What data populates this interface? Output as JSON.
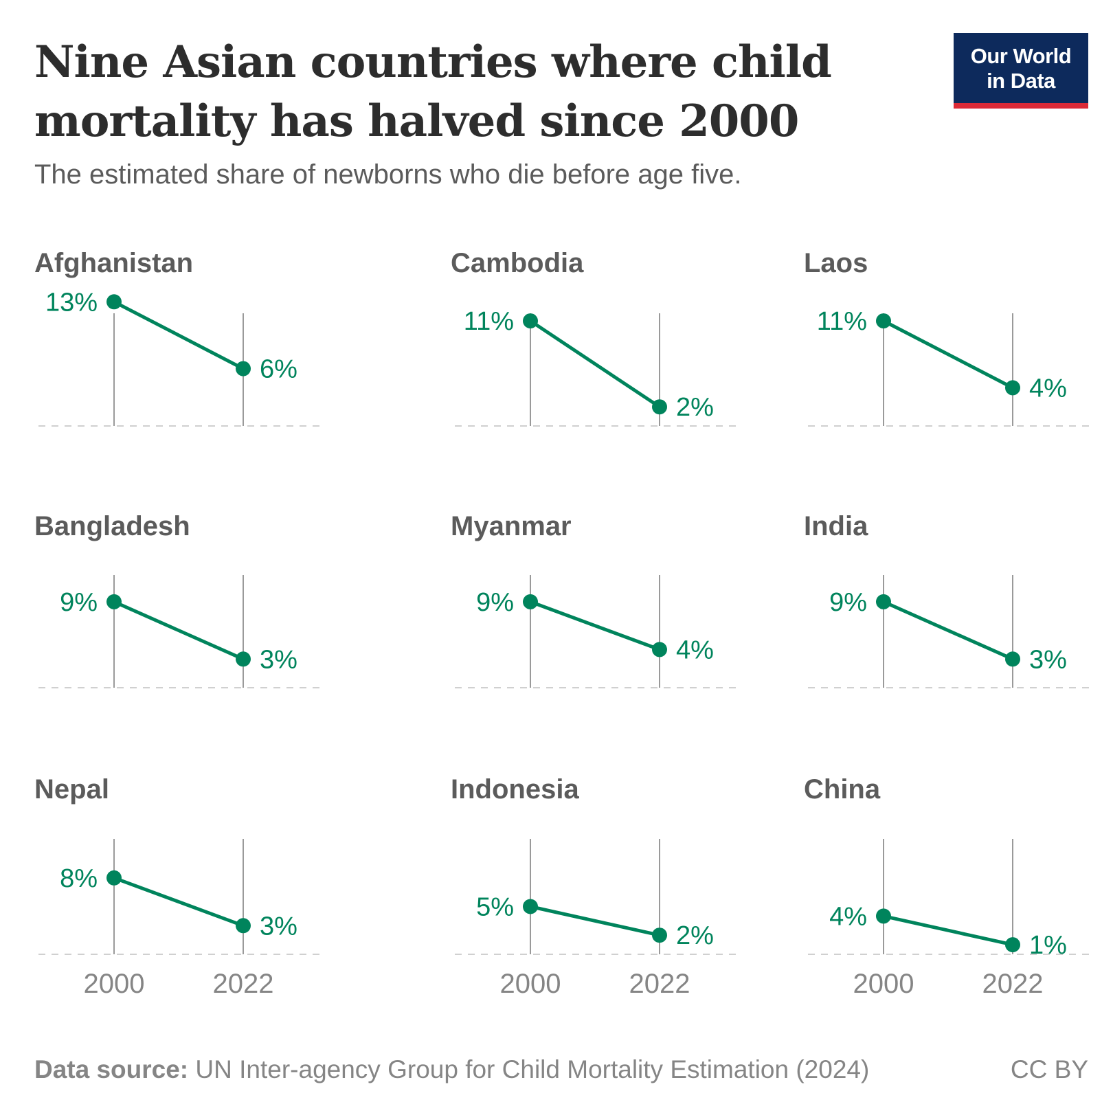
{
  "header": {
    "title_line1": "Nine Asian countries where child",
    "title_line2": "mortality has halved since 2000",
    "subtitle": "The estimated share of newborns who die before age five."
  },
  "logo": {
    "line1": "Our World",
    "line2": "in Data"
  },
  "footer": {
    "source_label": "Data source:",
    "source_text": " UN Inter-agency Group for Child Mortality Estimation (2024)",
    "license": "CC BY"
  },
  "colors": {
    "series": "#00845c",
    "axis_line": "#9a9a9a",
    "baseline": "#d0d0d0",
    "label": "#5b5b5b",
    "tick": "#858585"
  },
  "chart_data": [
    {
      "type": "line",
      "title": "Afghanistan",
      "x": [
        "2000",
        "2022"
      ],
      "values": [
        13,
        6
      ],
      "labels": [
        "13%",
        "6%"
      ],
      "ylim": [
        0,
        14.5
      ]
    },
    {
      "type": "line",
      "title": "Cambodia",
      "x": [
        "2000",
        "2022"
      ],
      "values": [
        11,
        2
      ],
      "labels": [
        "11%",
        "2%"
      ],
      "ylim": [
        0,
        14.5
      ]
    },
    {
      "type": "line",
      "title": "Laos",
      "x": [
        "2000",
        "2022"
      ],
      "values": [
        11,
        4
      ],
      "labels": [
        "11%",
        "4%"
      ],
      "ylim": [
        0,
        14.5
      ]
    },
    {
      "type": "line",
      "title": "Bangladesh",
      "x": [
        "2000",
        "2022"
      ],
      "values": [
        9,
        3
      ],
      "labels": [
        "9%",
        "3%"
      ],
      "ylim": [
        0,
        14.5
      ]
    },
    {
      "type": "line",
      "title": "Myanmar",
      "x": [
        "2000",
        "2022"
      ],
      "values": [
        9,
        4
      ],
      "labels": [
        "9%",
        "4%"
      ],
      "ylim": [
        0,
        14.5
      ]
    },
    {
      "type": "line",
      "title": "India",
      "x": [
        "2000",
        "2022"
      ],
      "values": [
        9,
        3
      ],
      "labels": [
        "9%",
        "3%"
      ],
      "ylim": [
        0,
        14.5
      ]
    },
    {
      "type": "line",
      "title": "Nepal",
      "x": [
        "2000",
        "2022"
      ],
      "values": [
        8,
        3
      ],
      "labels": [
        "8%",
        "3%"
      ],
      "ylim": [
        0,
        14.5
      ]
    },
    {
      "type": "line",
      "title": "Indonesia",
      "x": [
        "2000",
        "2022"
      ],
      "values": [
        5,
        2
      ],
      "labels": [
        "5%",
        "2%"
      ],
      "ylim": [
        0,
        14.5
      ]
    },
    {
      "type": "line",
      "title": "China",
      "x": [
        "2000",
        "2022"
      ],
      "values": [
        4,
        1
      ],
      "labels": [
        "4%",
        "1%"
      ],
      "ylim": [
        0,
        14.5
      ]
    }
  ]
}
